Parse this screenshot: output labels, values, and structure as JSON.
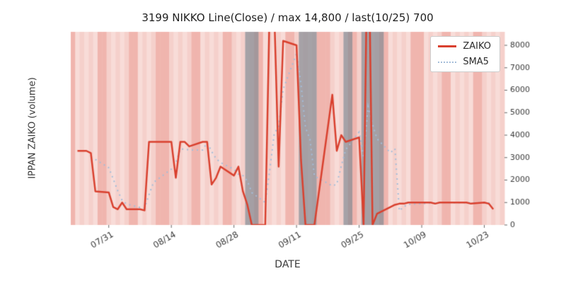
{
  "chart_data": {
    "type": "line",
    "title": "3199 NIKKO Line(Close) / max 14,800 / last(10/25) 700",
    "xlabel": "DATE",
    "ylabel": "IPPAN ZAIKO (volume)",
    "legend": [
      "ZAIKO",
      "SMA5"
    ],
    "x_ticks": [
      "07/31",
      "08/14",
      "08/28",
      "09/11",
      "09/25",
      "10/09",
      "10/23"
    ],
    "y_ticks": [
      0,
      1000,
      2000,
      3000,
      4000,
      5000,
      6000,
      7000,
      8000
    ],
    "ylim": [
      0,
      8600
    ],
    "x_range": [
      "07/23",
      "10/27"
    ],
    "dates": [
      "07/24",
      "07/25",
      "07/26",
      "07/27",
      "07/28",
      "07/31",
      "08/01",
      "08/02",
      "08/03",
      "08/04",
      "08/07",
      "08/08",
      "08/09",
      "08/10",
      "08/14",
      "08/15",
      "08/16",
      "08/17",
      "08/18",
      "08/21",
      "08/22",
      "08/23",
      "08/24",
      "08/25",
      "08/28",
      "08/29",
      "08/30",
      "08/31",
      "09/01",
      "09/04",
      "09/05",
      "09/06",
      "09/07",
      "09/08",
      "09/11",
      "09/12",
      "09/13",
      "09/14",
      "09/15",
      "09/19",
      "09/20",
      "09/21",
      "09/22",
      "09/25",
      "09/26",
      "09/27",
      "09/28",
      "09/29",
      "10/02",
      "10/03",
      "10/04",
      "10/05",
      "10/06",
      "10/10",
      "10/11",
      "10/12",
      "10/13",
      "10/16",
      "10/17",
      "10/18",
      "10/19",
      "10/20",
      "10/23",
      "10/24",
      "10/25"
    ],
    "series": [
      {
        "name": "ZAIKO",
        "values": [
          3300,
          3300,
          3300,
          3200,
          1500,
          1450,
          800,
          700,
          1000,
          700,
          700,
          650,
          3700,
          3700,
          3700,
          2100,
          3700,
          3700,
          3500,
          3700,
          3700,
          1800,
          2100,
          2600,
          2200,
          2600,
          1500,
          900,
          0,
          0,
          9800,
          9600,
          2600,
          8200,
          8000,
          2900,
          0,
          0,
          0,
          5800,
          3300,
          4000,
          3700,
          3900,
          0,
          14800,
          0,
          500,
          800,
          900,
          950,
          950,
          1000,
          1000,
          1000,
          950,
          1000,
          1000,
          1000,
          1000,
          1000,
          950,
          1000,
          950,
          700
        ]
      },
      {
        "name": "SMA5",
        "derived": "5-period moving average of ZAIKO"
      }
    ],
    "gray_bands": [
      [
        "08/31",
        "09/02"
      ],
      [
        "09/12",
        "09/15"
      ],
      [
        "09/22",
        "09/23"
      ],
      [
        "09/26",
        "09/30"
      ]
    ],
    "holidays": [
      "08/11",
      "09/18",
      "10/09"
    ]
  },
  "colors": {
    "zaiko": "#d9402e",
    "sma5": "#a4bdd9",
    "stripe_weekday_a": "#f8dcd8",
    "stripe_weekday_b": "#f5d0cb",
    "stripe_weekend": "#f0b5ae",
    "gray_band": "#878c94",
    "tick_text": "#3a3a3a"
  }
}
